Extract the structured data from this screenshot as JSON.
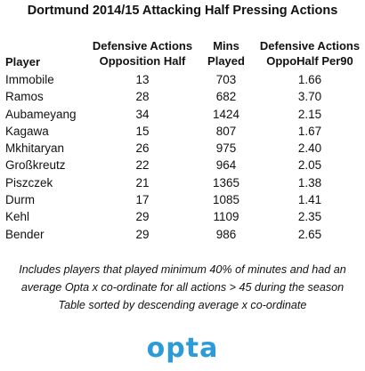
{
  "title": "Dortmund 2014/15 Attacking Half Pressing Actions",
  "table": {
    "headers": {
      "player": "Player",
      "def_actions": [
        "Defensive Actions",
        "Opposition Half"
      ],
      "mins": [
        "Mins",
        "Played"
      ],
      "per90": [
        "Defensive Actions",
        "OppoHalf Per90"
      ]
    },
    "rows": [
      {
        "player": "Immobile",
        "def_actions": "13",
        "mins": "703",
        "per90": "1.66"
      },
      {
        "player": "Ramos",
        "def_actions": "28",
        "mins": "682",
        "per90": "3.70"
      },
      {
        "player": "Aubameyang",
        "def_actions": "34",
        "mins": "1424",
        "per90": "2.15"
      },
      {
        "player": "Kagawa",
        "def_actions": "15",
        "mins": "807",
        "per90": "1.67"
      },
      {
        "player": "Mkhitaryan",
        "def_actions": "26",
        "mins": "975",
        "per90": "2.40"
      },
      {
        "player": "Großkreutz",
        "def_actions": "22",
        "mins": "964",
        "per90": "2.05"
      },
      {
        "player": "Piszczek",
        "def_actions": "21",
        "mins": "1365",
        "per90": "1.38"
      },
      {
        "player": "Durm",
        "def_actions": "17",
        "mins": "1085",
        "per90": "1.41"
      },
      {
        "player": "Kehl",
        "def_actions": "29",
        "mins": "1109",
        "per90": "2.35"
      },
      {
        "player": "Bender",
        "def_actions": "29",
        "mins": "986",
        "per90": "2.65"
      }
    ]
  },
  "notes": [
    "Includes players that played minimum 40% of minutes and had an",
    "average Opta x co-ordinate for all actions > 45 during the season",
    "Table sorted by descending average x co-ordinate"
  ],
  "logo": {
    "text": "opta",
    "color": "#2d9bd8"
  }
}
